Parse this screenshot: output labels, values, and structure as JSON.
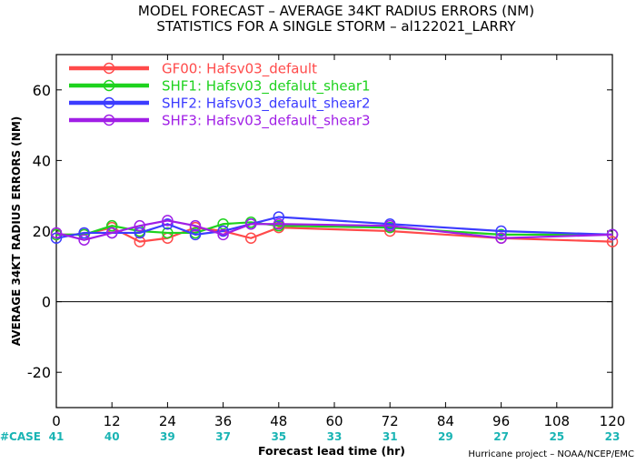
{
  "chart_data": {
    "type": "line",
    "title_lines": [
      "MODEL FORECAST – AVERAGE 34KT RADIUS ERRORS (NM)",
      "STATISTICS FOR A SINGLE STORM – al122021_LARRY"
    ],
    "xlabel": "Forecast lead time (hr)",
    "ylabel": "AVERAGE 34KT RADIUS ERRORS (NM)",
    "xlim": [
      0,
      120
    ],
    "ylim": [
      -30,
      70
    ],
    "xticks": [
      0,
      12,
      24,
      36,
      48,
      60,
      72,
      84,
      96,
      108,
      120
    ],
    "yticks": [
      -20,
      0,
      20,
      40,
      60
    ],
    "case_label": "#CASE",
    "case_counts": [
      "41",
      "40",
      "39",
      "37",
      "35",
      "33",
      "31",
      "29",
      "27",
      "25",
      "23"
    ],
    "credit": "Hurricane project – NOAA/NCEP/EMC",
    "legend_position": "top-left",
    "series": [
      {
        "name": "GF00: Hafsv03_default",
        "color": "#ff4a4a",
        "x": [
          0,
          6,
          12,
          18,
          24,
          30,
          36,
          42,
          48,
          72,
          96,
          120
        ],
        "y": [
          19,
          19,
          21,
          17,
          18,
          21,
          20,
          18,
          21,
          20,
          18,
          17
        ]
      },
      {
        "name": "SHF1: Hafsv03_defalut_shear1",
        "color": "#1ed21e",
        "x": [
          0,
          6,
          12,
          18,
          24,
          30,
          36,
          42,
          48,
          72,
          96,
          120
        ],
        "y": [
          19,
          19,
          21.5,
          20,
          19.5,
          19.5,
          22,
          22.5,
          21.5,
          21,
          19,
          19
        ]
      },
      {
        "name": "SHF2: Hafsv03_default_shear2",
        "color": "#3c3cff",
        "x": [
          0,
          6,
          12,
          18,
          24,
          30,
          36,
          42,
          48,
          72,
          96,
          120
        ],
        "y": [
          18,
          19.5,
          19.5,
          19.5,
          22,
          19,
          20,
          22,
          24,
          22,
          20,
          19
        ]
      },
      {
        "name": "SHF3: Hafsv03_default_shear3",
        "color": "#a01ee6",
        "x": [
          0,
          6,
          12,
          18,
          24,
          30,
          36,
          42,
          48,
          72,
          96,
          120
        ],
        "y": [
          19.5,
          17.5,
          19.5,
          21.5,
          23,
          21.5,
          19,
          22,
          22,
          21.5,
          18,
          19
        ]
      }
    ]
  }
}
